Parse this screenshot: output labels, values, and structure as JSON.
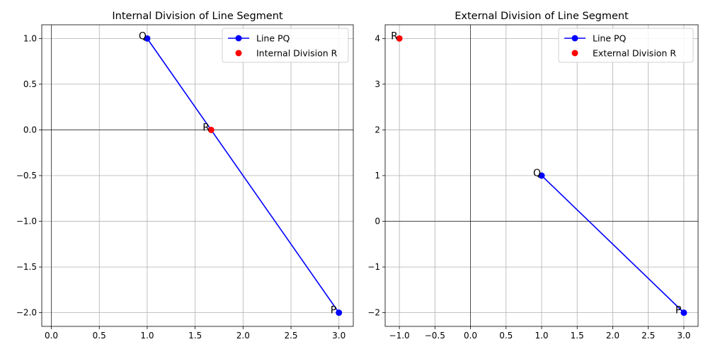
{
  "chart_data": [
    {
      "type": "line",
      "title": "Internal Division of Line Segment",
      "xlabel": "",
      "ylabel": "",
      "xlim": [
        -0.1,
        3.15
      ],
      "ylim": [
        -2.15,
        1.15
      ],
      "xticks": [
        0.0,
        0.5,
        1.0,
        1.5,
        2.0,
        2.5,
        3.0
      ],
      "xtick_labels": [
        "0.0",
        "0.5",
        "1.0",
        "1.5",
        "2.0",
        "2.5",
        "3.0"
      ],
      "yticks": [
        -2.0,
        -1.5,
        -1.0,
        -0.5,
        0.0,
        0.5,
        1.0
      ],
      "ytick_labels": [
        "−2.0",
        "−1.5",
        "−1.0",
        "−0.5",
        "0.0",
        "0.5",
        "1.0"
      ],
      "grid": true,
      "legend_position": "top-right",
      "series": [
        {
          "name": "Line PQ",
          "color": "#0000ff",
          "style": "line-marker",
          "x": [
            3,
            1
          ],
          "y": [
            -2,
            1
          ]
        },
        {
          "name": "Internal Division R",
          "color": "#ff0000",
          "style": "marker",
          "x": [
            1.667
          ],
          "y": [
            0
          ]
        }
      ],
      "point_labels": [
        {
          "text": "P",
          "x": 3,
          "y": -2
        },
        {
          "text": "Q",
          "x": 1,
          "y": 1
        },
        {
          "text": "R",
          "x": 1.667,
          "y": 0
        }
      ]
    },
    {
      "type": "line",
      "title": "External Division of Line Segment",
      "xlabel": "",
      "ylabel": "",
      "xlim": [
        -1.2,
        3.2
      ],
      "ylim": [
        -2.3,
        4.3
      ],
      "xticks": [
        -1.0,
        -0.5,
        0.0,
        0.5,
        1.0,
        1.5,
        2.0,
        2.5,
        3.0
      ],
      "xtick_labels": [
        "−1.0",
        "−0.5",
        "0.0",
        "0.5",
        "1.0",
        "1.5",
        "2.0",
        "2.5",
        "3.0"
      ],
      "yticks": [
        -2,
        -1,
        0,
        1,
        2,
        3,
        4
      ],
      "ytick_labels": [
        "−2",
        "−1",
        "0",
        "1",
        "2",
        "3",
        "4"
      ],
      "grid": true,
      "legend_position": "top-right",
      "series": [
        {
          "name": "Line PQ",
          "color": "#0000ff",
          "style": "line-marker",
          "x": [
            3,
            1
          ],
          "y": [
            -2,
            1
          ]
        },
        {
          "name": "External Division R",
          "color": "#ff0000",
          "style": "marker",
          "x": [
            -1
          ],
          "y": [
            4
          ]
        }
      ],
      "point_labels": [
        {
          "text": "P",
          "x": 3,
          "y": -2
        },
        {
          "text": "Q",
          "x": 1,
          "y": 1
        },
        {
          "text": "R",
          "x": -1,
          "y": 4
        }
      ]
    }
  ]
}
